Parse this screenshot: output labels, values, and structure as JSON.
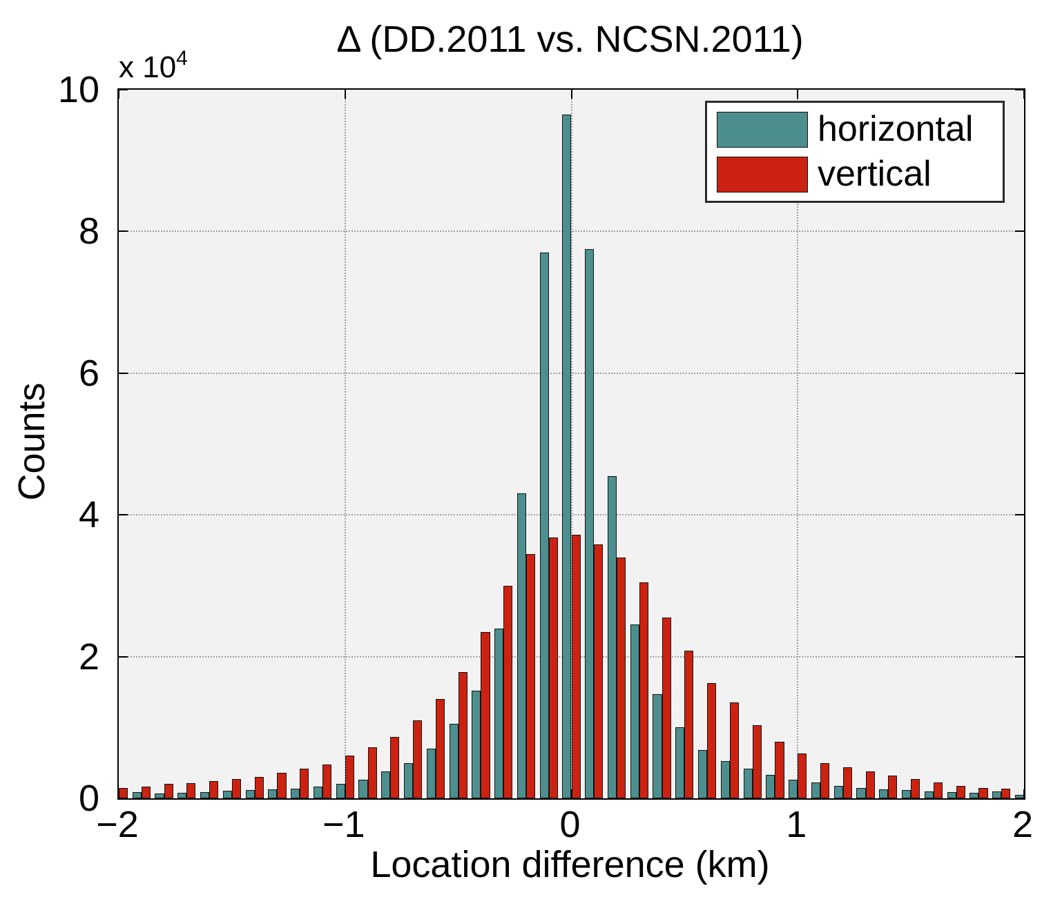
{
  "title": "Δ (DD.2011 vs. NCSN.2011)",
  "y_multiplier": {
    "base": "x 10",
    "exp": "4"
  },
  "axes": {
    "xlabel": "Location difference (km)",
    "ylabel": "Counts",
    "x_ticks": [
      "−2",
      "−1",
      "0",
      "1",
      "2"
    ],
    "y_ticks": [
      "0",
      "2",
      "4",
      "6",
      "8",
      "10"
    ]
  },
  "legend": [
    {
      "label": "horizontal",
      "color": "#4d8e8e"
    },
    {
      "label": "vertical",
      "color": "#cc2211"
    }
  ],
  "colors": {
    "plot_background": "#f2f2f2",
    "axis": "#000000",
    "grid": "#9f9f9f",
    "bar_edge": "#141414"
  },
  "chart_data": {
    "type": "bar",
    "title": "Δ (DD.2011 vs. NCSN.2011)",
    "xlabel": "Location difference (km)",
    "ylabel": "Counts",
    "y_unit": "counts × 10^4",
    "xlim": [
      -2,
      2
    ],
    "ylim": [
      0,
      10
    ],
    "grid": true,
    "legend_position": "top-right",
    "x_tick_values": [
      -2,
      -1,
      0,
      1,
      2
    ],
    "y_tick_values": [
      0,
      2,
      4,
      6,
      8,
      10
    ],
    "bar_half_width": 0.04,
    "bin_centers": [
      -2.0,
      -1.9,
      -1.8,
      -1.7,
      -1.6,
      -1.5,
      -1.4,
      -1.3,
      -1.2,
      -1.1,
      -1.0,
      -0.9,
      -0.8,
      -0.7,
      -0.6,
      -0.5,
      -0.4,
      -0.3,
      -0.2,
      -0.1,
      0.0,
      0.1,
      0.2,
      0.3,
      0.4,
      0.5,
      0.6,
      0.7,
      0.8,
      0.9,
      1.0,
      1.1,
      1.2,
      1.3,
      1.4,
      1.5,
      1.6,
      1.7,
      1.8,
      1.9,
      2.0
    ],
    "series": [
      {
        "name": "horizontal",
        "color": "#4d8e8e",
        "values": [
          0.05,
          0.09,
          0.07,
          0.08,
          0.09,
          0.11,
          0.12,
          0.13,
          0.14,
          0.17,
          0.2,
          0.26,
          0.38,
          0.5,
          0.7,
          1.05,
          1.52,
          2.4,
          4.3,
          7.7,
          9.65,
          7.75,
          4.55,
          2.45,
          1.47,
          1.0,
          0.68,
          0.53,
          0.42,
          0.33,
          0.26,
          0.22,
          0.18,
          0.15,
          0.13,
          0.12,
          0.1,
          0.09,
          0.08,
          0.1,
          0.05
        ]
      },
      {
        "name": "vertical",
        "color": "#cc2211",
        "values": [
          0.15,
          0.17,
          0.2,
          0.21,
          0.24,
          0.27,
          0.3,
          0.36,
          0.42,
          0.48,
          0.6,
          0.72,
          0.87,
          1.1,
          1.4,
          1.78,
          2.35,
          3.0,
          3.45,
          3.68,
          3.72,
          3.58,
          3.4,
          3.05,
          2.55,
          2.08,
          1.63,
          1.35,
          1.03,
          0.8,
          0.63,
          0.5,
          0.44,
          0.38,
          0.32,
          0.27,
          0.22,
          0.18,
          0.15,
          0.14,
          0.13
        ]
      }
    ]
  }
}
